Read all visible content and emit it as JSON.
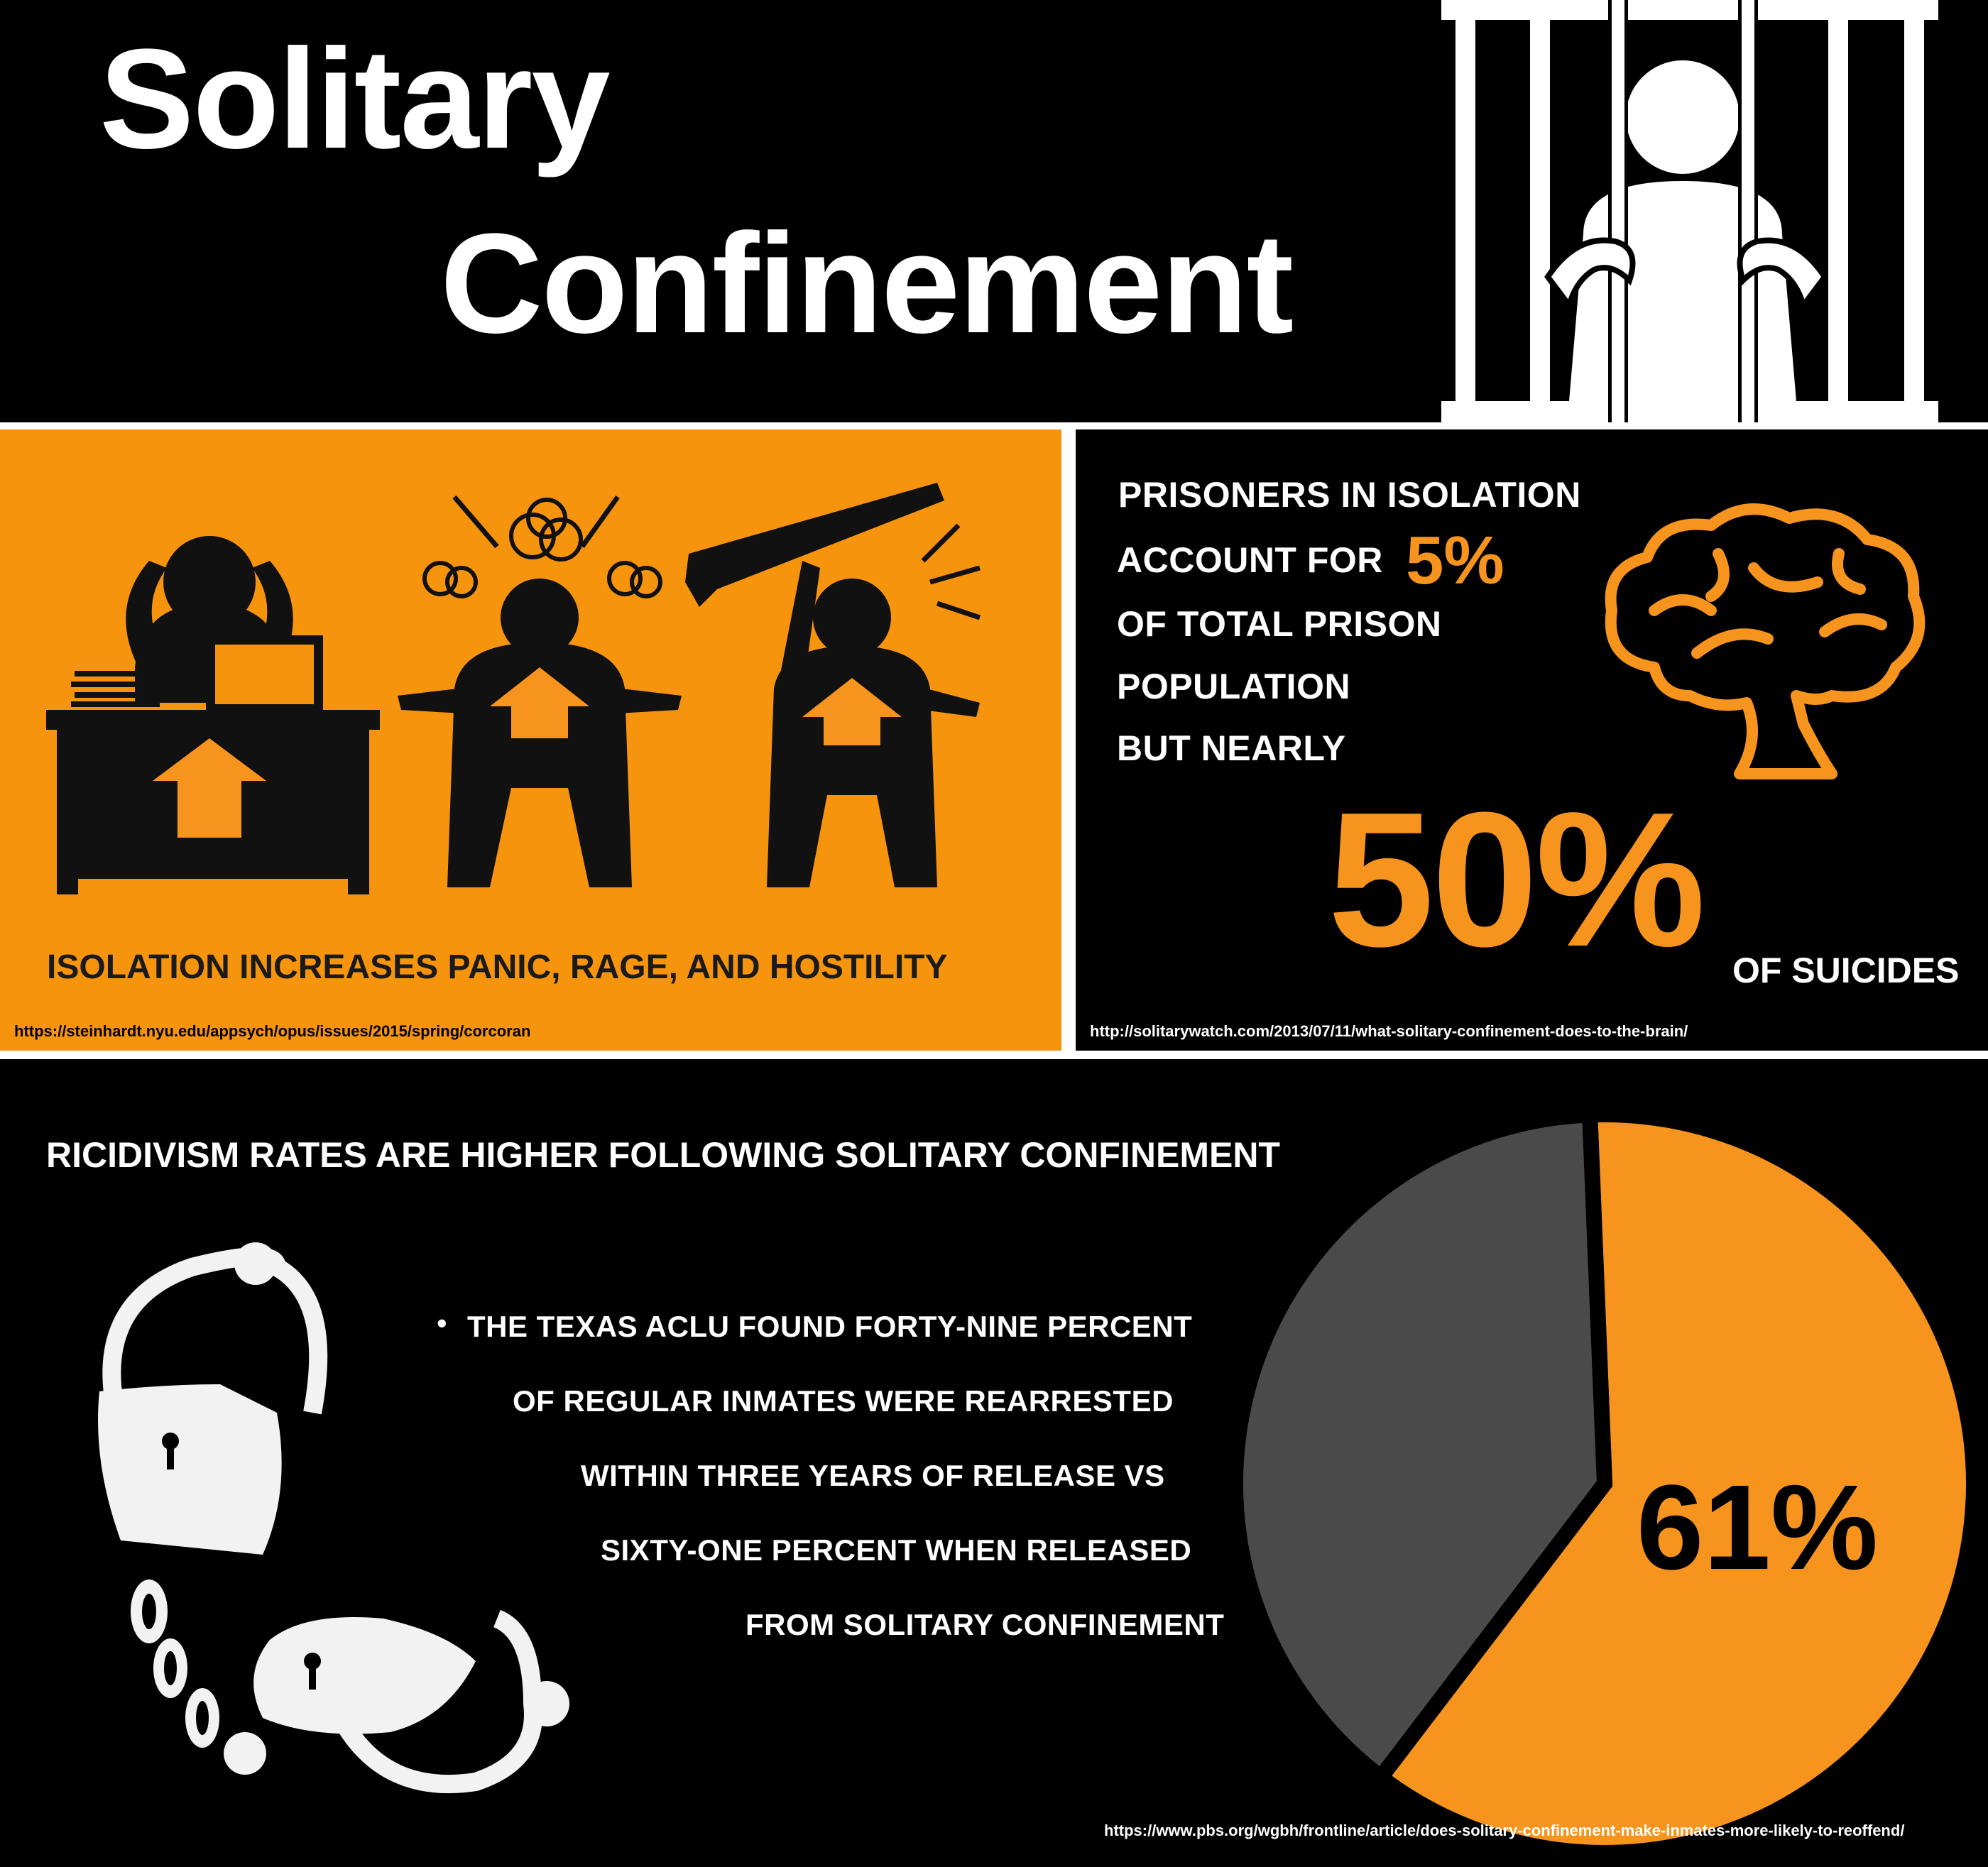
{
  "header": {
    "title_line1": "Solitary",
    "title_line2": "Confinement"
  },
  "left_panel": {
    "caption": "ISOLATION INCREASES PANIC, RAGE, AND HOSTILITY",
    "source": "https://steinhardt.nyu.edu/appsych/opus/issues/2015/spring/corcoran"
  },
  "right_panel": {
    "line1": "PRISONERS IN ISOLATION",
    "line2": "ACCOUNT FOR",
    "highlight_small": "5%",
    "line3": "OF TOTAL PRISON",
    "line4": "POPULATION",
    "line5": "BUT NEARLY",
    "highlight_large": "50%",
    "line6": "OF SUICIDES",
    "source": "http://solitarywatch.com/2013/07/11/what-solitary-confinement-does-to-the-brain/"
  },
  "bottom_panel": {
    "heading": "RICIDIVISM RATES ARE HIGHER FOLLOWING SOLITARY CONFINEMENT",
    "bullet": "•",
    "bullet_lines": [
      "THE TEXAS ACLU FOUND FORTY-NINE PERCENT",
      "OF REGULAR INMATES WERE REARRESTED",
      "WITHIN THREE YEARS OF RELEASE VS",
      "SIXTY-ONE PERCENT WHEN RELEASED",
      "FROM SOLITARY CONFINEMENT"
    ],
    "pie_label": "61%",
    "source": "https://www.pbs.org/wgbh/frontline/article/does-solitary-confinement-make-inmates-more-likely-to-reoffend/"
  },
  "chart_data": {
    "type": "pie",
    "values": [
      61,
      39
    ],
    "colors": [
      "#f7941d",
      "#4a4a4a"
    ],
    "labels": [
      "61%",
      ""
    ]
  },
  "colors": {
    "orange": "#f7941d",
    "panel_orange": "#f7940e",
    "black": "#000000",
    "white": "#ffffff",
    "grey": "#4a4a4a"
  },
  "icons": {
    "jail": "prisoner-behind-bars-icon",
    "figures": "stressed-angry-hostile-figures-icon",
    "brain": "brain-icon",
    "cuffs": "handcuffs-icon"
  }
}
